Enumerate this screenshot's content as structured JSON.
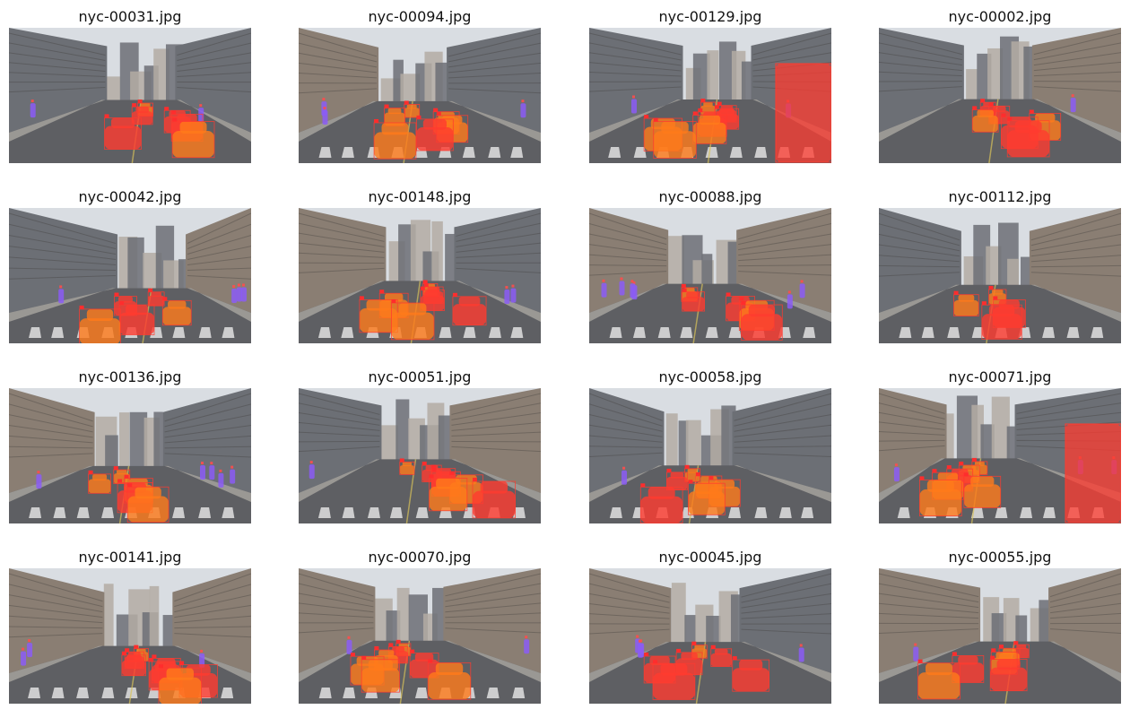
{
  "grid": {
    "images": [
      {
        "filename": "nyc-00031.jpg",
        "seed": 31,
        "cars": 6,
        "peds": 2,
        "vanRight": false
      },
      {
        "filename": "nyc-00094.jpg",
        "seed": 94,
        "cars": 6,
        "peds": 3,
        "vanRight": false
      },
      {
        "filename": "nyc-00129.jpg",
        "seed": 129,
        "cars": 7,
        "peds": 2,
        "vanRight": true
      },
      {
        "filename": "nyc-00002.jpg",
        "seed": 2,
        "cars": 6,
        "peds": 1,
        "vanRight": false
      },
      {
        "filename": "nyc-00042.jpg",
        "seed": 42,
        "cars": 5,
        "peds": 4,
        "vanRight": false
      },
      {
        "filename": "nyc-00148.jpg",
        "seed": 148,
        "cars": 7,
        "peds": 2,
        "vanRight": false
      },
      {
        "filename": "nyc-00088.jpg",
        "seed": 88,
        "cars": 5,
        "peds": 6,
        "vanRight": false
      },
      {
        "filename": "nyc-00112.jpg",
        "seed": 112,
        "cars": 4,
        "peds": 0,
        "vanRight": false
      },
      {
        "filename": "nyc-00136.jpg",
        "seed": 136,
        "cars": 5,
        "peds": 5,
        "vanRight": false
      },
      {
        "filename": "nyc-00051.jpg",
        "seed": 51,
        "cars": 7,
        "peds": 1,
        "vanRight": false
      },
      {
        "filename": "nyc-00058.jpg",
        "seed": 58,
        "cars": 6,
        "peds": 1,
        "vanRight": false
      },
      {
        "filename": "nyc-00071.jpg",
        "seed": 71,
        "cars": 6,
        "peds": 3,
        "vanRight": true
      },
      {
        "filename": "nyc-00141.jpg",
        "seed": 141,
        "cars": 7,
        "peds": 3,
        "vanRight": false
      },
      {
        "filename": "nyc-00070.jpg",
        "seed": 70,
        "cars": 7,
        "peds": 2,
        "vanRight": false
      },
      {
        "filename": "nyc-00045.jpg",
        "seed": 45,
        "cars": 6,
        "peds": 4,
        "vanRight": false
      },
      {
        "filename": "nyc-00055.jpg",
        "seed": 55,
        "cars": 6,
        "peds": 1,
        "vanRight": false
      }
    ]
  },
  "colors": {
    "vehicle_mask": "#ff3b30",
    "taxi": "#ff7a1a",
    "pedestrian_mask": "#8b5cf6",
    "sky": "#d9dde2",
    "road": "#5e5f63",
    "building_a": "#8a7e73",
    "building_b": "#6c6f75",
    "building_c": "#b3aca3",
    "crosswalk": "#e9e9e9"
  }
}
